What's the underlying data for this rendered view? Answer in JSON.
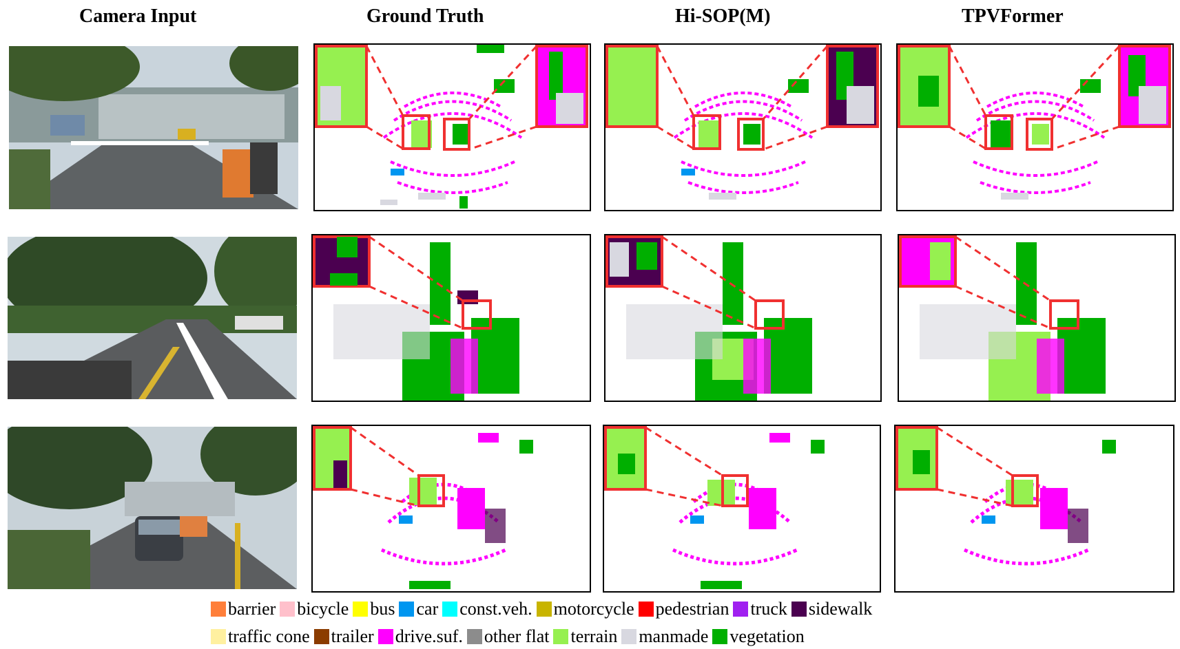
{
  "columns": [
    {
      "title": "Camera Input"
    },
    {
      "title": "Ground Truth"
    },
    {
      "title": "Hi-SOP(M)"
    },
    {
      "title": "TPVFormer"
    }
  ],
  "legend": [
    {
      "label": "barrier",
      "color": "#ff7f3a"
    },
    {
      "label": "bicycle",
      "color": "#ffc0cb"
    },
    {
      "label": "bus",
      "color": "#ffff00"
    },
    {
      "label": "car",
      "color": "#0096f0"
    },
    {
      "label": "const.veh.",
      "color": "#00ffff"
    },
    {
      "label": "motorcycle",
      "color": "#c8b400"
    },
    {
      "label": "pedestrian",
      "color": "#ff0000"
    },
    {
      "label": "truck",
      "color": "#a020f0"
    },
    {
      "label": "sidewalk",
      "color": "#4b0050"
    },
    {
      "label": "traffic cone",
      "color": "#fff0a0"
    },
    {
      "label": "trailer",
      "color": "#8b3c00"
    },
    {
      "label": "drive.suf.",
      "color": "#ff00ff"
    },
    {
      "label": "other flat",
      "color": "#8c8c8c"
    },
    {
      "label": "terrain",
      "color": "#96f050"
    },
    {
      "label": "manmade",
      "color": "#d8d8e0"
    },
    {
      "label": "vegetation",
      "color": "#00af00"
    }
  ]
}
